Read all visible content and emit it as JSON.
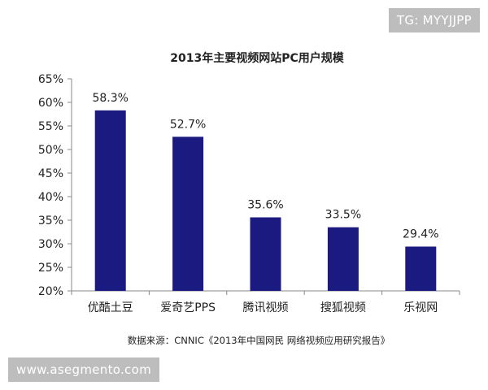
{
  "watermarks": {
    "top": "TG: MYYJJPP",
    "bottom": "www.asegmento.com"
  },
  "chart_data": {
    "type": "bar",
    "title": "2013年主要视频网站PC用户规模",
    "source": "数据来源：CNNIC《2013年中国网民 网络视频应用研究报告》",
    "categories": [
      "优酷土豆",
      "爱奇艺PPS",
      "腾讯视频",
      "搜狐视频",
      "乐视网"
    ],
    "values": [
      58.3,
      52.7,
      35.6,
      33.5,
      29.4
    ],
    "data_labels": [
      "58.3%",
      "52.7%",
      "35.6%",
      "33.5%",
      "29.4%"
    ],
    "y_ticks": [
      "20%",
      "25%",
      "30%",
      "35%",
      "40%",
      "45%",
      "50%",
      "55%",
      "60%",
      "65%"
    ],
    "y_tick_values": [
      20,
      25,
      30,
      35,
      40,
      45,
      50,
      55,
      60,
      65
    ],
    "ylim": [
      20,
      65
    ],
    "xlabel": "",
    "ylabel": "",
    "grid": false,
    "bar_color": "#1a1a80"
  }
}
